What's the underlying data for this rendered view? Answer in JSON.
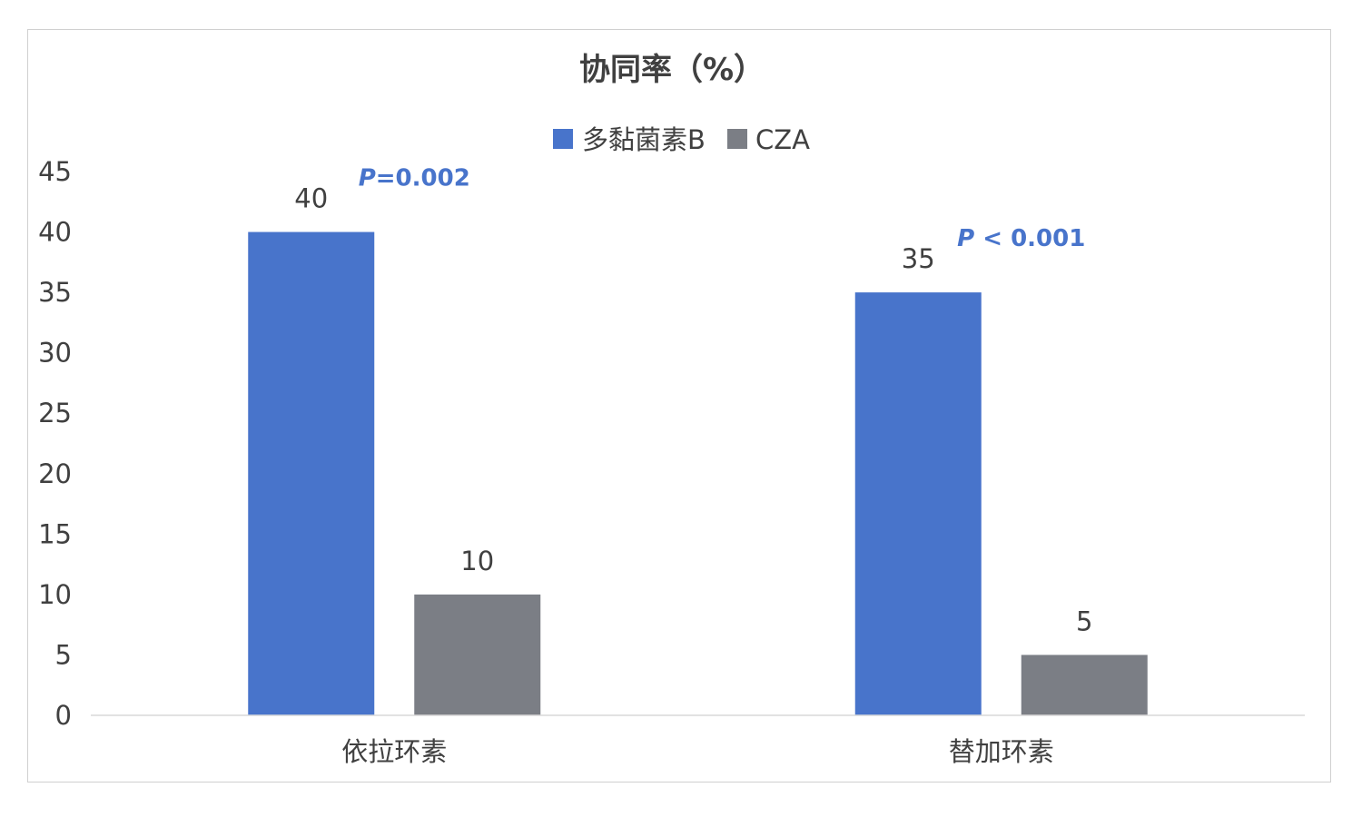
{
  "chart_data": {
    "type": "bar",
    "title": "协同率（%）",
    "categories": [
      "依拉环素",
      "替加环素"
    ],
    "series": [
      {
        "name": "多黏菌素B",
        "values": [
          40,
          35
        ],
        "color": "#4874CB"
      },
      {
        "name": "CZA",
        "values": [
          10,
          5
        ],
        "color": "#7B7E85"
      }
    ],
    "ylim": [
      0,
      45
    ],
    "yticks": [
      0,
      5,
      10,
      15,
      20,
      25,
      30,
      35,
      40,
      45
    ],
    "grid": false,
    "legend_position": "top",
    "annotations": [
      {
        "letter": "P",
        "rest": "=0.002",
        "category": "依拉环素"
      },
      {
        "letter": "P",
        "rest": " < 0.001",
        "category": "替加环素"
      }
    ],
    "annotation_color": "#4874CB",
    "axis_color": "#D9D9D9",
    "text_color": "#404040"
  }
}
